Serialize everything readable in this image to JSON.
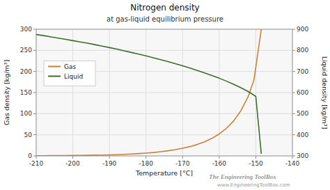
{
  "chart_data": {
    "type": "line",
    "title": "Nitrogen density",
    "subtitle": "at gas-liquid equilibrium pressure",
    "xlabel": "Temperature [°C]",
    "ylabel": "Gas density [kg/m³]",
    "y2label": "Liquid density [kg/m³]",
    "xlim": [
      -210,
      -140
    ],
    "ylim": [
      0,
      300
    ],
    "y2lim": [
      300,
      900
    ],
    "xticks": [
      -210,
      -200,
      -190,
      -180,
      -170,
      -160,
      -150,
      -140
    ],
    "yticks": [
      0,
      50,
      100,
      150,
      200,
      250,
      300
    ],
    "y2ticks": [
      300,
      400,
      500,
      600,
      700,
      800,
      900
    ],
    "grid": true,
    "legend": "upper left",
    "annotations": [
      "The Engineering ToolBox",
      "www.EngineeringToolBox.com"
    ],
    "series": [
      {
        "name": "Gas",
        "color": "#c8813a",
        "axis": "y",
        "x": [
          -210,
          -208,
          -206,
          -204,
          -202,
          -200,
          -198,
          -196,
          -194,
          -192,
          -190,
          -188,
          -186,
          -184,
          -182,
          -180,
          -178,
          -176,
          -174,
          -172,
          -170,
          -168,
          -166,
          -164,
          -162,
          -160,
          -158,
          -156,
          -154,
          -152,
          -150.5,
          -148.5
        ],
        "values": [
          0.4,
          0.5,
          0.6,
          0.7,
          0.85,
          1.05,
          1.25,
          1.5,
          1.8,
          2.1,
          2.5,
          3.0,
          3.7,
          4.5,
          5.5,
          6.7,
          8.1,
          9.9,
          12.1,
          14.8,
          18.0,
          22.0,
          27.0,
          33.5,
          41.5,
          52.0,
          65.5,
          83.5,
          108.0,
          142.0,
          180.0,
          300.0
        ]
      },
      {
        "name": "Liquid",
        "color": "#3d6b2e",
        "axis": "y2",
        "x": [
          -210,
          -208,
          -206,
          -204,
          -202,
          -200,
          -198,
          -196,
          -194,
          -192,
          -190,
          -188,
          -186,
          -184,
          -182,
          -180,
          -178,
          -176,
          -174,
          -172,
          -170,
          -168,
          -166,
          -164,
          -162,
          -160,
          -158,
          -156,
          -154,
          -152,
          -150,
          -148.5
        ],
        "values": [
          875,
          870,
          864,
          858,
          852,
          846,
          840,
          834,
          827,
          820,
          813,
          806,
          798,
          790,
          782,
          774,
          765,
          756,
          747,
          737,
          727,
          716,
          705,
          693,
          681,
          668,
          654,
          639,
          622,
          604,
          582,
          310
        ]
      }
    ]
  }
}
